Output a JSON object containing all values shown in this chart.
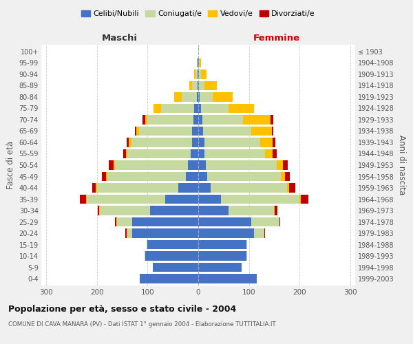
{
  "age_groups": [
    "0-4",
    "5-9",
    "10-14",
    "15-19",
    "20-24",
    "25-29",
    "30-34",
    "35-39",
    "40-44",
    "45-49",
    "50-54",
    "55-59",
    "60-64",
    "65-69",
    "70-74",
    "75-79",
    "80-84",
    "85-89",
    "90-94",
    "95-99",
    "100+"
  ],
  "birth_years": [
    "1999-2003",
    "1994-1998",
    "1989-1993",
    "1984-1988",
    "1979-1983",
    "1974-1978",
    "1969-1973",
    "1964-1968",
    "1959-1963",
    "1954-1958",
    "1949-1953",
    "1944-1948",
    "1939-1943",
    "1934-1938",
    "1929-1933",
    "1924-1928",
    "1919-1923",
    "1914-1918",
    "1909-1913",
    "1904-1908",
    "≤ 1903"
  ],
  "maschi": {
    "celibi": [
      115,
      90,
      105,
      100,
      130,
      130,
      95,
      65,
      40,
      25,
      20,
      15,
      12,
      12,
      10,
      8,
      3,
      2,
      1,
      1,
      0
    ],
    "coniugati": [
      0,
      0,
      1,
      2,
      10,
      30,
      100,
      155,
      160,
      155,
      145,
      125,
      120,
      105,
      90,
      65,
      30,
      10,
      5,
      2,
      0
    ],
    "vedovi": [
      0,
      0,
      0,
      0,
      2,
      2,
      1,
      2,
      2,
      2,
      2,
      3,
      5,
      5,
      5,
      15,
      15,
      5,
      2,
      0,
      0
    ],
    "divorziati": [
      0,
      0,
      0,
      0,
      2,
      2,
      3,
      12,
      8,
      8,
      10,
      5,
      5,
      3,
      5,
      0,
      0,
      0,
      0,
      0,
      0
    ]
  },
  "femmine": {
    "nubili": [
      115,
      85,
      95,
      95,
      110,
      105,
      60,
      45,
      25,
      18,
      15,
      12,
      12,
      10,
      8,
      5,
      3,
      2,
      1,
      1,
      0
    ],
    "coniugate": [
      0,
      0,
      1,
      2,
      20,
      55,
      90,
      155,
      150,
      145,
      140,
      120,
      110,
      95,
      80,
      55,
      25,
      10,
      5,
      2,
      0
    ],
    "vedove": [
      0,
      0,
      0,
      0,
      0,
      0,
      1,
      3,
      5,
      8,
      12,
      15,
      25,
      40,
      55,
      50,
      40,
      25,
      10,
      2,
      0
    ],
    "divorziate": [
      0,
      0,
      0,
      0,
      2,
      2,
      5,
      15,
      12,
      10,
      10,
      8,
      5,
      3,
      5,
      0,
      0,
      0,
      0,
      0,
      0
    ]
  },
  "colors": {
    "celibi_nubili": "#4472c4",
    "coniugati": "#c5d9a0",
    "vedovi": "#ffc000",
    "divorziati": "#c00000"
  },
  "xlim": 310,
  "title": "Popolazione per età, sesso e stato civile - 2004",
  "subtitle": "COMUNE DI CAVA MANARA (PV) - Dati ISTAT 1° gennaio 2004 - Elaborazione TUTTITALIA.IT",
  "xlabel_left": "Maschi",
  "xlabel_right": "Femmine",
  "ylabel_left": "Fasce di età",
  "ylabel_right": "Anni di nascita",
  "legend_labels": [
    "Celibi/Nubili",
    "Coniugati/e",
    "Vedovi/e",
    "Divorziati/e"
  ],
  "bg_color": "#f0f0f0",
  "plot_bg": "#ffffff"
}
